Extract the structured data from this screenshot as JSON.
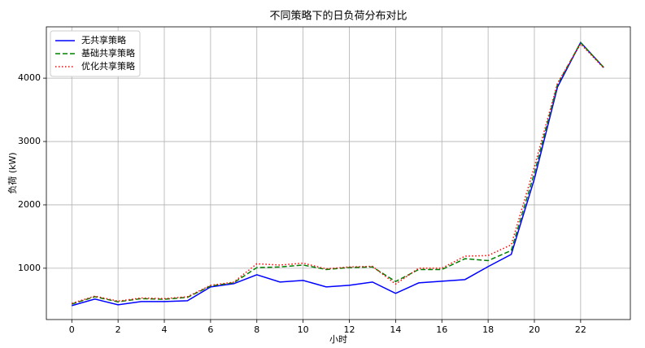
{
  "chart_data": {
    "type": "line",
    "title": "不同策略下的日负荷分布对比",
    "x_label": "小时",
    "y_label": "负荷 (kW)",
    "x": [
      0,
      1,
      2,
      3,
      4,
      5,
      6,
      7,
      8,
      9,
      10,
      11,
      12,
      13,
      14,
      15,
      16,
      17,
      18,
      19,
      20,
      21,
      22,
      23
    ],
    "series": [
      {
        "name": "无共享策略",
        "color": "#0000ff",
        "style": "solid",
        "values": [
          410,
          513,
          423,
          474,
          474,
          487,
          705,
          756,
          897,
          782,
          808,
          705,
          731,
          782,
          603,
          769,
          795,
          821,
          1026,
          1218,
          2410,
          3860,
          4564,
          4167
        ]
      },
      {
        "name": "基础共享策略",
        "color": "#008000",
        "style": "dashed",
        "values": [
          435,
          550,
          470,
          520,
          510,
          540,
          720,
          770,
          1010,
          1020,
          1050,
          980,
          1010,
          1020,
          790,
          980,
          980,
          1150,
          1120,
          1280,
          2500,
          3900,
          4560,
          4170
        ]
      },
      {
        "name": "优化共享策略",
        "color": "#ff0000",
        "style": "dotted",
        "values": [
          445,
          560,
          480,
          530,
          520,
          550,
          730,
          780,
          1070,
          1050,
          1080,
          990,
          1020,
          1030,
          750,
          1000,
          1000,
          1190,
          1200,
          1370,
          2600,
          3920,
          4540,
          4160
        ]
      }
    ],
    "xlim": [
      -1.1,
      24.15
    ],
    "ylim": [
      190,
      4810
    ],
    "xticks": [
      0,
      2,
      4,
      6,
      8,
      10,
      12,
      14,
      16,
      18,
      20,
      22
    ],
    "yticks": [
      1000,
      2000,
      3000,
      4000
    ],
    "grid": true,
    "legend": "upper left"
  }
}
